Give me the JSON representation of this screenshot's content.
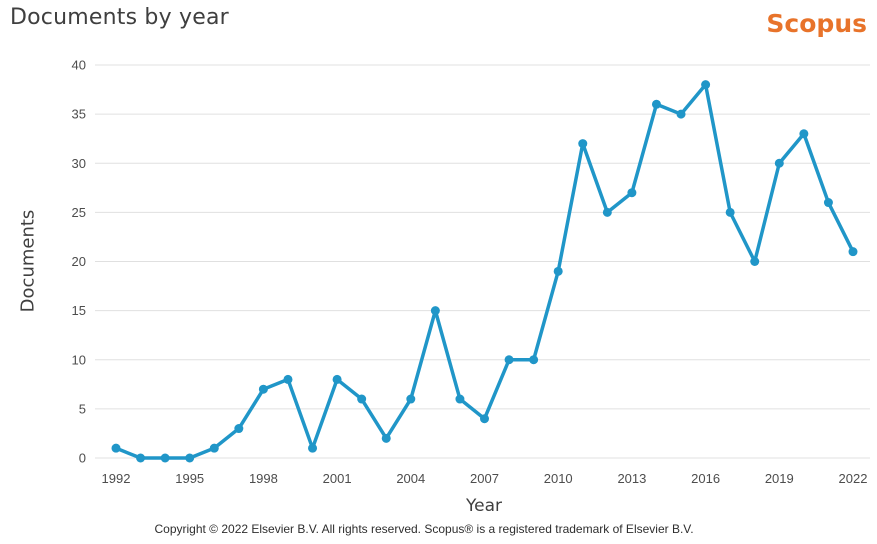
{
  "header": {
    "title": "Documents by year",
    "logo_text": "Scopus"
  },
  "footer": {
    "copyright": "Copyright © 2022 Elsevier B.V. All rights reserved. Scopus® is a registered trademark of Elsevier B.V."
  },
  "chart_data": {
    "type": "line",
    "title": "Documents by year",
    "xlabel": "Year",
    "ylabel": "Documents",
    "series": [
      {
        "name": "Documents",
        "x": [
          1992,
          1993,
          1994,
          1995,
          1996,
          1997,
          1998,
          1999,
          2000,
          2001,
          2002,
          2003,
          2004,
          2005,
          2006,
          2007,
          2008,
          2009,
          2010,
          2011,
          2012,
          2013,
          2014,
          2015,
          2016,
          2017,
          2018,
          2019,
          2020,
          2021,
          2022
        ],
        "values": [
          1,
          0,
          0,
          0,
          1,
          3,
          7,
          8,
          1,
          8,
          6,
          2,
          6,
          15,
          6,
          4,
          10,
          10,
          19,
          32,
          25,
          27,
          36,
          35,
          38,
          25,
          20,
          30,
          33,
          26,
          21
        ]
      }
    ],
    "xlim": [
      1992,
      2022
    ],
    "ylim": [
      0,
      40
    ],
    "xtick_interval": 3,
    "ytick_interval": 5,
    "xticks": [
      1992,
      1995,
      1998,
      2001,
      2004,
      2007,
      2010,
      2013,
      2016,
      2019,
      2022
    ],
    "yticks": [
      0,
      5,
      10,
      15,
      20,
      25,
      30,
      35,
      40
    ],
    "grid": true,
    "legend_position": "none",
    "colors": {
      "line": "#2096C8",
      "marker": "#2096C8",
      "grid": "#e0e0e0",
      "tick_label": "#4d4d4d",
      "title": "#3f3f3f",
      "logo": "#E8732A",
      "footer_text": "#2e2e2e",
      "background": "#ffffff"
    }
  }
}
